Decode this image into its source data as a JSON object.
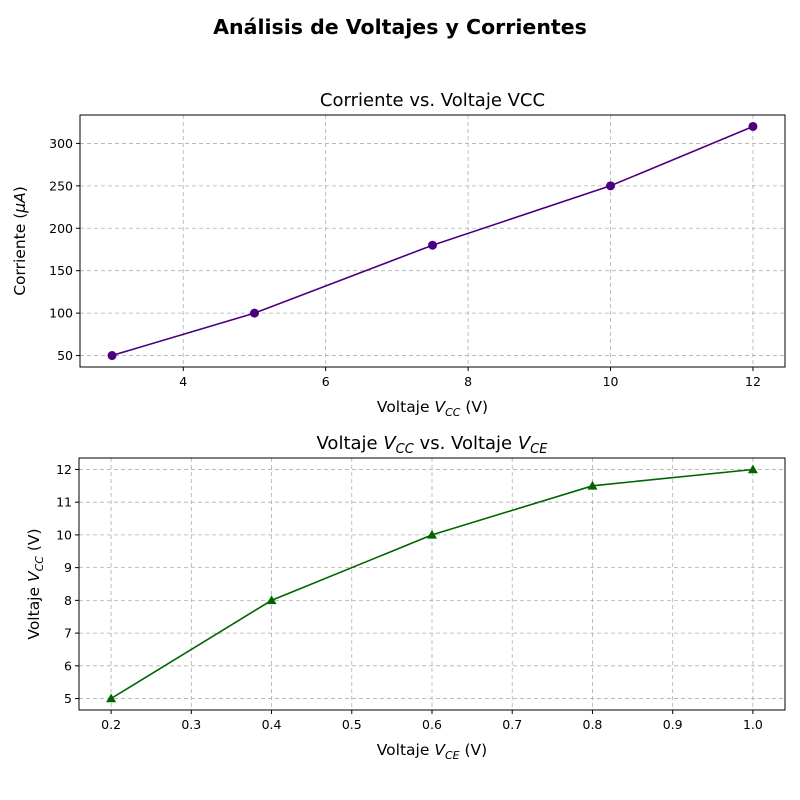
{
  "figure_title": "Análisis de Voltajes y Corrientes",
  "chart_data": [
    {
      "type": "line",
      "title": "Corriente vs. Voltaje VCC",
      "xlabel": {
        "base": "Voltaje ",
        "var": "V",
        "sub": "CC",
        "suffix": " (V)"
      },
      "ylabel": {
        "prefix": "Corriente (",
        "greek": "μ",
        "var": "A",
        "suffix": ")"
      },
      "x": [
        3,
        5,
        7.5,
        10,
        12
      ],
      "series": [
        {
          "values": [
            50,
            100,
            180,
            250,
            320
          ],
          "color": "#4b0082",
          "marker": "circle"
        }
      ],
      "xlim": [
        2.55,
        12.45
      ],
      "ylim": [
        36.5,
        333.5
      ],
      "xticks": [
        4,
        6,
        8,
        10,
        12
      ],
      "xtick_labels": [
        "4",
        "6",
        "8",
        "10",
        "12"
      ],
      "yticks": [
        50,
        100,
        150,
        200,
        250,
        300
      ],
      "ytick_labels": [
        "50",
        "100",
        "150",
        "200",
        "250",
        "300"
      ],
      "grid": true
    },
    {
      "type": "line",
      "title": {
        "base": "Voltaje ",
        "var1": "V",
        "sub1": "CC",
        "mid": " vs. Voltaje ",
        "var2": "V",
        "sub2": "CE"
      },
      "xlabel": {
        "base": "Voltaje ",
        "var": "V",
        "sub": "CE",
        "suffix": " (V)"
      },
      "ylabel": {
        "base": "Voltaje ",
        "var": "V",
        "sub": "CC",
        "suffix": " (V)"
      },
      "x": [
        0.2,
        0.4,
        0.6,
        0.8,
        1.0
      ],
      "series": [
        {
          "values": [
            5,
            8,
            10,
            11.5,
            12
          ],
          "color": "#006400",
          "marker": "triangle"
        }
      ],
      "xlim": [
        0.16,
        1.04
      ],
      "ylim": [
        4.65,
        12.35
      ],
      "xticks": [
        0.2,
        0.3,
        0.4,
        0.5,
        0.6,
        0.7,
        0.8,
        0.9,
        1.0
      ],
      "xtick_labels": [
        "0.2",
        "0.3",
        "0.4",
        "0.5",
        "0.6",
        "0.7",
        "0.8",
        "0.9",
        "1.0"
      ],
      "yticks": [
        5,
        6,
        7,
        8,
        9,
        10,
        11,
        12
      ],
      "ytick_labels": [
        "5",
        "6",
        "7",
        "8",
        "9",
        "10",
        "11",
        "12"
      ],
      "grid": true
    }
  ]
}
